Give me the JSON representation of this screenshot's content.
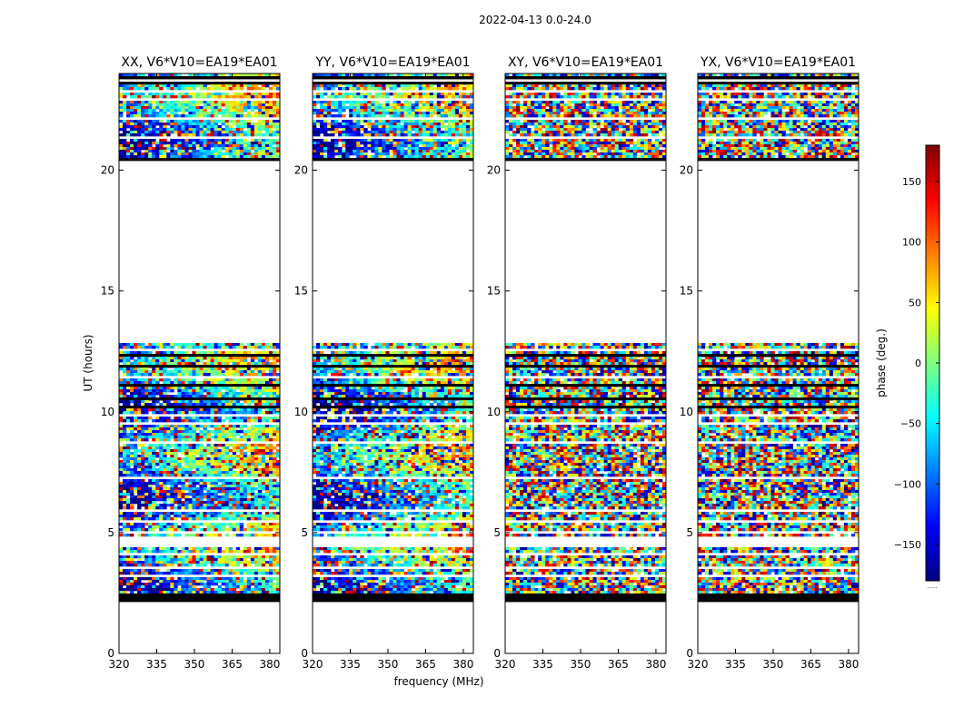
{
  "chart_data": {
    "type": "heatmap",
    "suptitle": "2022-04-13 0.0-24.0",
    "xlabel": "frequency (MHz)",
    "ylabel": "UT (hours)",
    "xlim": [
      320,
      384
    ],
    "ylim": [
      0,
      24
    ],
    "xticks": [
      320,
      335,
      350,
      365,
      380
    ],
    "yticks": [
      0,
      5,
      10,
      15,
      20
    ],
    "colorbar": {
      "label": "phase (deg.)",
      "range": [
        -180,
        180
      ],
      "ticks": [
        150,
        100,
        50,
        0,
        -50,
        -100,
        -150
      ],
      "tick_labels": [
        "150",
        "100",
        "50",
        "0",
        "−50",
        "−100",
        "−150"
      ],
      "colormap": "jet",
      "colors": [
        "#00007f",
        "#0000ff",
        "#007fff",
        "#00ffff",
        "#7fff7f",
        "#ffff00",
        "#ff7f00",
        "#ff0000",
        "#7f0000"
      ],
      "under_label": "......"
    },
    "panels": [
      {
        "title": "XX, V6*V10=EA19*EA01",
        "coherent": true,
        "seed": 11
      },
      {
        "title": "YY, V6*V10=EA19*EA01",
        "coherent": true,
        "seed": 23
      },
      {
        "title": "XY, V6*V10=EA19*EA01",
        "coherent": false,
        "seed": 37
      },
      {
        "title": "YX, V6*V10=EA19*EA01",
        "coherent": false,
        "seed": 53
      }
    ],
    "data_ranges_hours": [
      [
        2.2,
        4.5
      ],
      [
        4.85,
        10.5
      ],
      [
        10.55,
        12.9
      ],
      [
        20.4,
        24
      ]
    ],
    "flagged_rows_hours": [
      2.2,
      2.45,
      20.55,
      23.65,
      23.9,
      10.3,
      10.6,
      11.2,
      11.95,
      12.35
    ],
    "blank_rows_hours": [
      3.0,
      3.3,
      3.6,
      4.0,
      4.2,
      5.1,
      5.5,
      6.0,
      6.6,
      7.3,
      7.6,
      8.4,
      8.8,
      9.2,
      9.6,
      9.9,
      11.5,
      12.1,
      12.6,
      21.0,
      21.4,
      21.8,
      22.2,
      22.6,
      23.0,
      23.3,
      23.5,
      23.8
    ]
  }
}
